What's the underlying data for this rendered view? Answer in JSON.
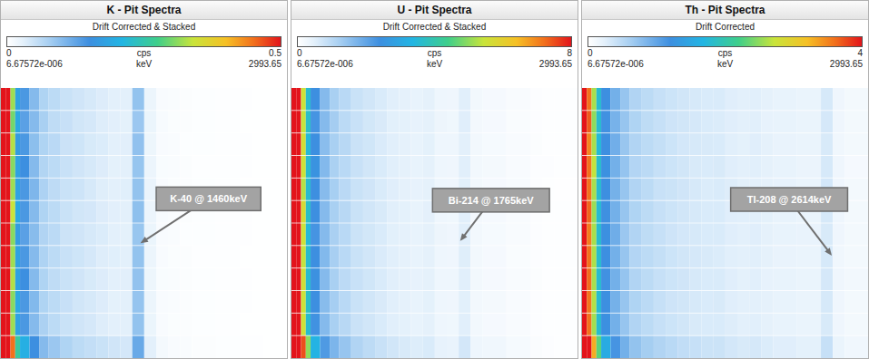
{
  "chart_data": [
    {
      "type": "heatmap",
      "title": "K - Pit Spectra",
      "subtitle": "Drift Corrected & Stacked",
      "xlabel": "keV",
      "xlim": [
        6.67572e-06,
        2993.65
      ],
      "xticks": [
        {
          "value": 6.67572e-06,
          "label": "6.67572e-006"
        },
        2993.65
      ],
      "bin_edges": [
        6.67572e-06,
        50,
        100,
        150,
        200,
        300,
        400,
        500,
        625,
        750,
        875,
        1000,
        1125,
        1250,
        1375,
        1500,
        1625,
        1750,
        1875,
        2000,
        2250,
        2500,
        2625,
        2750,
        2993.65
      ],
      "cells": [
        [
          0.9,
          0.6,
          0.32,
          0.18,
          0.14,
          0.1,
          0.07,
          0.06,
          0.05,
          0.045,
          0.04,
          0.035,
          0.03,
          0.03,
          0.09,
          0.02,
          0.008,
          0.006,
          0.004,
          0.003,
          0.002,
          0.002,
          0.001,
          0.001
        ],
        [
          0.88,
          0.62,
          0.3,
          0.19,
          0.13,
          0.1,
          0.075,
          0.058,
          0.052,
          0.044,
          0.041,
          0.034,
          0.031,
          0.029,
          0.085,
          0.021,
          0.009,
          0.005,
          0.004,
          0.003,
          0.002,
          0.001,
          0.001,
          0.001
        ],
        [
          0.92,
          0.59,
          0.33,
          0.17,
          0.14,
          0.095,
          0.07,
          0.062,
          0.049,
          0.046,
          0.039,
          0.036,
          0.03,
          0.031,
          0.092,
          0.019,
          0.008,
          0.006,
          0.003,
          0.003,
          0.002,
          0.002,
          0.001,
          0.001
        ],
        [
          0.9,
          0.61,
          0.31,
          0.18,
          0.15,
          0.1,
          0.068,
          0.06,
          0.051,
          0.045,
          0.04,
          0.035,
          0.029,
          0.03,
          0.088,
          0.02,
          0.007,
          0.006,
          0.004,
          0.002,
          0.002,
          0.002,
          0.001,
          0.001
        ],
        [
          0.89,
          0.6,
          0.32,
          0.18,
          0.14,
          0.105,
          0.072,
          0.059,
          0.05,
          0.047,
          0.04,
          0.033,
          0.03,
          0.032,
          0.09,
          0.022,
          0.008,
          0.005,
          0.004,
          0.003,
          0.002,
          0.001,
          0.001,
          0.001
        ],
        [
          0.91,
          0.58,
          0.34,
          0.19,
          0.14,
          0.1,
          0.07,
          0.06,
          0.05,
          0.044,
          0.042,
          0.035,
          0.031,
          0.03,
          0.094,
          0.02,
          0.009,
          0.006,
          0.004,
          0.003,
          0.002,
          0.002,
          0.001,
          0.001
        ],
        [
          0.9,
          0.6,
          0.31,
          0.17,
          0.13,
          0.098,
          0.069,
          0.061,
          0.048,
          0.045,
          0.04,
          0.036,
          0.03,
          0.029,
          0.087,
          0.021,
          0.008,
          0.006,
          0.003,
          0.003,
          0.002,
          0.002,
          0.001,
          0.001
        ],
        [
          0.93,
          0.61,
          0.32,
          0.18,
          0.14,
          0.1,
          0.071,
          0.06,
          0.051,
          0.046,
          0.041,
          0.034,
          0.032,
          0.03,
          0.09,
          0.02,
          0.008,
          0.005,
          0.004,
          0.002,
          0.002,
          0.001,
          0.001,
          0.001
        ],
        [
          0.9,
          0.6,
          0.33,
          0.18,
          0.15,
          0.1,
          0.07,
          0.058,
          0.05,
          0.045,
          0.039,
          0.035,
          0.03,
          0.031,
          0.091,
          0.019,
          0.007,
          0.006,
          0.004,
          0.003,
          0.002,
          0.002,
          0.001,
          0.001
        ],
        [
          0.89,
          0.59,
          0.31,
          0.19,
          0.14,
          0.102,
          0.07,
          0.06,
          0.052,
          0.044,
          0.04,
          0.035,
          0.029,
          0.03,
          0.089,
          0.02,
          0.008,
          0.006,
          0.004,
          0.003,
          0.002,
          0.002,
          0.001,
          0.001
        ],
        [
          0.91,
          0.62,
          0.32,
          0.18,
          0.14,
          0.1,
          0.073,
          0.06,
          0.05,
          0.045,
          0.041,
          0.034,
          0.03,
          0.03,
          0.09,
          0.021,
          0.008,
          0.005,
          0.004,
          0.003,
          0.002,
          0.001,
          0.001,
          0.001
        ],
        [
          1.1,
          0.75,
          0.45,
          0.26,
          0.2,
          0.15,
          0.1,
          0.085,
          0.07,
          0.06,
          0.055,
          0.05,
          0.045,
          0.042,
          0.12,
          0.03,
          0.012,
          0.008,
          0.006,
          0.004,
          0.003,
          0.002,
          0.002,
          0.001
        ]
      ],
      "color_bar": {
        "range": [
          0,
          0.5
        ],
        "ticks": [
          0,
          0.5
        ],
        "label": "cps"
      },
      "annotations": [
        {
          "text": "K-40 @ 1460keV",
          "x": 1460
        }
      ]
    },
    {
      "type": "heatmap",
      "title": "U - Pit Spectra",
      "subtitle": "Drift Corrected & Stacked",
      "xlabel": "keV",
      "xlim": [
        6.67572e-06,
        2993.65
      ],
      "xticks": [
        {
          "value": 6.67572e-06,
          "label": "6.67572e-006"
        },
        2993.65
      ],
      "bin_edges": [
        6.67572e-06,
        50,
        100,
        150,
        200,
        300,
        400,
        500,
        625,
        750,
        875,
        1000,
        1125,
        1250,
        1375,
        1500,
        1625,
        1750,
        1875,
        2000,
        2250,
        2500,
        2625,
        2750,
        2993.65
      ],
      "cells": [
        [
          14,
          10,
          5.5,
          3.6,
          2.4,
          1.6,
          1.2,
          1.0,
          0.8,
          0.7,
          0.6,
          0.5,
          0.45,
          0.4,
          0.45,
          0.3,
          0.28,
          0.5,
          0.22,
          0.18,
          0.12,
          0.06,
          0.04,
          0.03
        ],
        [
          13.8,
          10.2,
          5.4,
          3.7,
          2.3,
          1.6,
          1.25,
          0.98,
          0.82,
          0.69,
          0.61,
          0.49,
          0.46,
          0.41,
          0.44,
          0.31,
          0.27,
          0.52,
          0.21,
          0.18,
          0.11,
          0.06,
          0.04,
          0.03
        ],
        [
          14.2,
          9.8,
          5.6,
          3.5,
          2.4,
          1.55,
          1.2,
          1.02,
          0.79,
          0.71,
          0.59,
          0.51,
          0.44,
          0.39,
          0.46,
          0.3,
          0.29,
          0.48,
          0.23,
          0.17,
          0.12,
          0.07,
          0.04,
          0.03
        ],
        [
          14,
          10.1,
          5.5,
          3.6,
          2.5,
          1.62,
          1.18,
          1.0,
          0.81,
          0.7,
          0.6,
          0.5,
          0.45,
          0.4,
          0.45,
          0.29,
          0.28,
          0.51,
          0.22,
          0.19,
          0.12,
          0.06,
          0.05,
          0.03
        ],
        [
          13.9,
          9.9,
          5.3,
          3.6,
          2.4,
          1.58,
          1.22,
          0.99,
          0.8,
          0.72,
          0.6,
          0.52,
          0.45,
          0.41,
          0.45,
          0.3,
          0.28,
          0.49,
          0.22,
          0.18,
          0.13,
          0.06,
          0.04,
          0.02
        ],
        [
          14.1,
          10,
          5.7,
          3.7,
          2.4,
          1.6,
          1.2,
          1.01,
          0.8,
          0.7,
          0.62,
          0.5,
          0.46,
          0.4,
          0.47,
          0.3,
          0.27,
          0.5,
          0.21,
          0.18,
          0.12,
          0.06,
          0.04,
          0.03
        ],
        [
          14,
          10.3,
          5.5,
          3.5,
          2.3,
          1.6,
          1.19,
          1.0,
          0.78,
          0.69,
          0.6,
          0.49,
          0.45,
          0.39,
          0.45,
          0.31,
          0.28,
          0.5,
          0.22,
          0.17,
          0.12,
          0.06,
          0.04,
          0.03
        ],
        [
          13.7,
          9.8,
          5.4,
          3.6,
          2.4,
          1.63,
          1.21,
          1.0,
          0.8,
          0.7,
          0.59,
          0.5,
          0.44,
          0.4,
          0.44,
          0.3,
          0.28,
          0.53,
          0.22,
          0.18,
          0.11,
          0.06,
          0.04,
          0.03
        ],
        [
          14.3,
          10.1,
          5.6,
          3.6,
          2.45,
          1.6,
          1.2,
          0.97,
          0.81,
          0.71,
          0.6,
          0.51,
          0.45,
          0.42,
          0.45,
          0.3,
          0.29,
          0.5,
          0.23,
          0.18,
          0.12,
          0.07,
          0.04,
          0.03
        ],
        [
          14,
          10,
          5.5,
          3.7,
          2.4,
          1.57,
          1.23,
          1.0,
          0.8,
          0.7,
          0.61,
          0.5,
          0.45,
          0.4,
          0.46,
          0.3,
          0.28,
          0.49,
          0.22,
          0.19,
          0.12,
          0.06,
          0.04,
          0.03
        ],
        [
          13.9,
          10.2,
          5.5,
          3.6,
          2.35,
          1.6,
          1.2,
          1.02,
          0.79,
          0.7,
          0.6,
          0.5,
          0.46,
          0.4,
          0.45,
          0.29,
          0.27,
          0.51,
          0.22,
          0.18,
          0.12,
          0.06,
          0.04,
          0.03
        ],
        [
          18,
          13,
          7.5,
          5,
          3.3,
          2.2,
          1.7,
          1.4,
          1.1,
          0.95,
          0.82,
          0.7,
          0.62,
          0.55,
          0.6,
          0.42,
          0.38,
          0.68,
          0.3,
          0.25,
          0.17,
          0.09,
          0.06,
          0.04
        ]
      ],
      "color_bar": {
        "range": [
          0,
          8
        ],
        "ticks": [
          0,
          8
        ],
        "label": "cps"
      },
      "annotations": [
        {
          "text": "Bi-214 @ 1765keV",
          "x": 1765
        }
      ]
    },
    {
      "type": "heatmap",
      "title": "Th - Pit Spectra",
      "subtitle": "Drift Corrected",
      "xlabel": "keV",
      "xlim": [
        6.67572e-06,
        2993.65
      ],
      "xticks": [
        {
          "value": 6.67572e-06,
          "label": "6.67572e-006"
        },
        2993.65
      ],
      "bin_edges": [
        6.67572e-06,
        50,
        100,
        150,
        200,
        300,
        400,
        500,
        625,
        750,
        875,
        1000,
        1125,
        1250,
        1375,
        1500,
        1625,
        1750,
        1875,
        2000,
        2250,
        2500,
        2625,
        2750,
        2993.65
      ],
      "cells": [
        [
          8,
          3.6,
          2.6,
          1.8,
          1.2,
          0.9,
          0.7,
          0.55,
          0.48,
          0.42,
          0.38,
          0.35,
          0.32,
          0.3,
          0.3,
          0.26,
          0.24,
          0.25,
          0.22,
          0.2,
          0.18,
          0.32,
          0.14,
          0.1
        ],
        [
          7.9,
          3.7,
          2.5,
          1.8,
          1.18,
          0.88,
          0.7,
          0.56,
          0.47,
          0.42,
          0.37,
          0.35,
          0.33,
          0.3,
          0.29,
          0.26,
          0.24,
          0.25,
          0.21,
          0.2,
          0.18,
          0.33,
          0.14,
          0.1
        ],
        [
          8.1,
          3.5,
          2.6,
          1.75,
          1.2,
          0.91,
          0.69,
          0.55,
          0.48,
          0.43,
          0.38,
          0.34,
          0.32,
          0.31,
          0.3,
          0.25,
          0.23,
          0.26,
          0.22,
          0.19,
          0.18,
          0.31,
          0.13,
          0.1
        ],
        [
          8,
          3.6,
          2.7,
          1.82,
          1.22,
          0.9,
          0.71,
          0.54,
          0.49,
          0.42,
          0.38,
          0.35,
          0.31,
          0.3,
          0.31,
          0.26,
          0.24,
          0.25,
          0.22,
          0.2,
          0.17,
          0.32,
          0.14,
          0.09
        ],
        [
          7.8,
          3.6,
          2.6,
          1.8,
          1.2,
          0.89,
          0.7,
          0.55,
          0.48,
          0.41,
          0.39,
          0.36,
          0.32,
          0.29,
          0.3,
          0.27,
          0.24,
          0.24,
          0.22,
          0.21,
          0.18,
          0.34,
          0.14,
          0.1
        ],
        [
          8.2,
          3.65,
          2.55,
          1.78,
          1.19,
          0.9,
          0.7,
          0.56,
          0.48,
          0.42,
          0.38,
          0.35,
          0.32,
          0.3,
          0.3,
          0.26,
          0.25,
          0.25,
          0.23,
          0.2,
          0.18,
          0.32,
          0.15,
          0.1
        ],
        [
          8,
          3.55,
          2.6,
          1.8,
          1.21,
          0.92,
          0.68,
          0.55,
          0.47,
          0.42,
          0.37,
          0.34,
          0.32,
          0.3,
          0.3,
          0.26,
          0.24,
          0.26,
          0.22,
          0.2,
          0.19,
          0.31,
          0.14,
          0.1
        ],
        [
          7.9,
          3.6,
          2.62,
          1.81,
          1.2,
          0.9,
          0.7,
          0.54,
          0.48,
          0.43,
          0.38,
          0.35,
          0.33,
          0.31,
          0.29,
          0.25,
          0.24,
          0.25,
          0.22,
          0.19,
          0.18,
          0.32,
          0.13,
          0.1
        ],
        [
          8.1,
          3.62,
          2.6,
          1.8,
          1.18,
          0.9,
          0.71,
          0.55,
          0.48,
          0.42,
          0.38,
          0.36,
          0.32,
          0.3,
          0.3,
          0.26,
          0.23,
          0.25,
          0.21,
          0.2,
          0.18,
          0.33,
          0.14,
          0.11
        ],
        [
          8,
          3.58,
          2.64,
          1.79,
          1.2,
          0.89,
          0.7,
          0.56,
          0.49,
          0.42,
          0.37,
          0.35,
          0.32,
          0.3,
          0.31,
          0.26,
          0.24,
          0.24,
          0.22,
          0.2,
          0.18,
          0.32,
          0.14,
          0.1
        ],
        [
          8,
          3.6,
          2.58,
          1.8,
          1.21,
          0.9,
          0.7,
          0.55,
          0.48,
          0.42,
          0.38,
          0.35,
          0.31,
          0.3,
          0.3,
          0.27,
          0.24,
          0.25,
          0.22,
          0.2,
          0.18,
          0.31,
          0.14,
          0.1
        ],
        [
          10,
          4.5,
          3.3,
          2.3,
          1.55,
          1.15,
          0.9,
          0.72,
          0.62,
          0.55,
          0.5,
          0.45,
          0.42,
          0.39,
          0.39,
          0.34,
          0.31,
          0.33,
          0.29,
          0.26,
          0.23,
          0.42,
          0.18,
          0.13
        ]
      ],
      "color_bar": {
        "range": [
          0,
          4
        ],
        "ticks": [
          0,
          4
        ],
        "label": "cps"
      },
      "annotations": [
        {
          "text": "Tl-208 @ 2614keV",
          "x": 2614
        }
      ]
    }
  ]
}
